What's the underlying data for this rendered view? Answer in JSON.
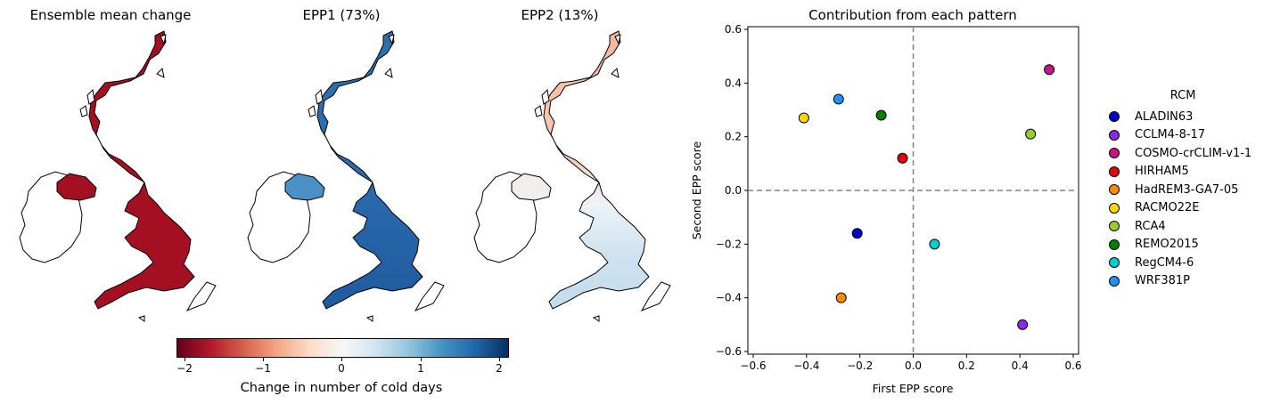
{
  "maps": [
    {
      "title": "Ensemble mean change"
    },
    {
      "title": "EPP1 (73%)"
    },
    {
      "title": "EPP2 (13%)"
    }
  ],
  "colorbar": {
    "label": "Change in number of cold days",
    "ticks": [
      "−2",
      "−1",
      "0",
      "1",
      "2"
    ],
    "range": [
      -2.1,
      2.1
    ],
    "colormap": "RdBu"
  },
  "chart_data": {
    "type": "scatter",
    "title": "Contribution from each pattern",
    "xlabel": "First EPP score",
    "ylabel": "Second EPP score",
    "xlim": [
      -0.62,
      0.62
    ],
    "ylim": [
      -0.61,
      0.61
    ],
    "xticks": [
      -0.6,
      -0.4,
      -0.2,
      0.0,
      0.2,
      0.4,
      0.6
    ],
    "yticks": [
      -0.6,
      -0.4,
      -0.2,
      0.0,
      0.2,
      0.4,
      0.6
    ],
    "xtick_labels": [
      "−0.6",
      "−0.4",
      "−0.2",
      "0.0",
      "0.2",
      "0.4",
      "0.6"
    ],
    "ytick_labels": [
      "−0.6",
      "−0.4",
      "−0.2",
      "0.0",
      "0.2",
      "0.4",
      "0.6"
    ],
    "reference_lines": {
      "x": 0.0,
      "y": 0.0,
      "style": "dashed",
      "color": "#808080"
    },
    "legend_title": "RCM",
    "legend_placement": "outside-right",
    "series": [
      {
        "name": "ALADIN63",
        "color": "#0000cd",
        "x": -0.21,
        "y": -0.16
      },
      {
        "name": "CCLM4-8-17",
        "color": "#8a2be2",
        "x": 0.41,
        "y": -0.5
      },
      {
        "name": "COSMO-crCLIM-v1-1",
        "color": "#c71585",
        "x": 0.51,
        "y": 0.45
      },
      {
        "name": "HIRHAM5",
        "color": "#e8000b",
        "x": -0.04,
        "y": 0.12
      },
      {
        "name": "HadREM3-GA7-05",
        "color": "#ff8c00",
        "x": -0.27,
        "y": -0.4
      },
      {
        "name": "RACMO22E",
        "color": "#ffd700",
        "x": -0.41,
        "y": 0.27
      },
      {
        "name": "RCA4",
        "color": "#9acd32",
        "x": 0.44,
        "y": 0.21
      },
      {
        "name": "REMO2015",
        "color": "#008000",
        "x": -0.12,
        "y": 0.28
      },
      {
        "name": "RegCM4-6",
        "color": "#00ced1",
        "x": 0.08,
        "y": -0.2
      },
      {
        "name": "WRF381P",
        "color": "#1e90ff",
        "x": -0.28,
        "y": 0.34
      }
    ]
  }
}
